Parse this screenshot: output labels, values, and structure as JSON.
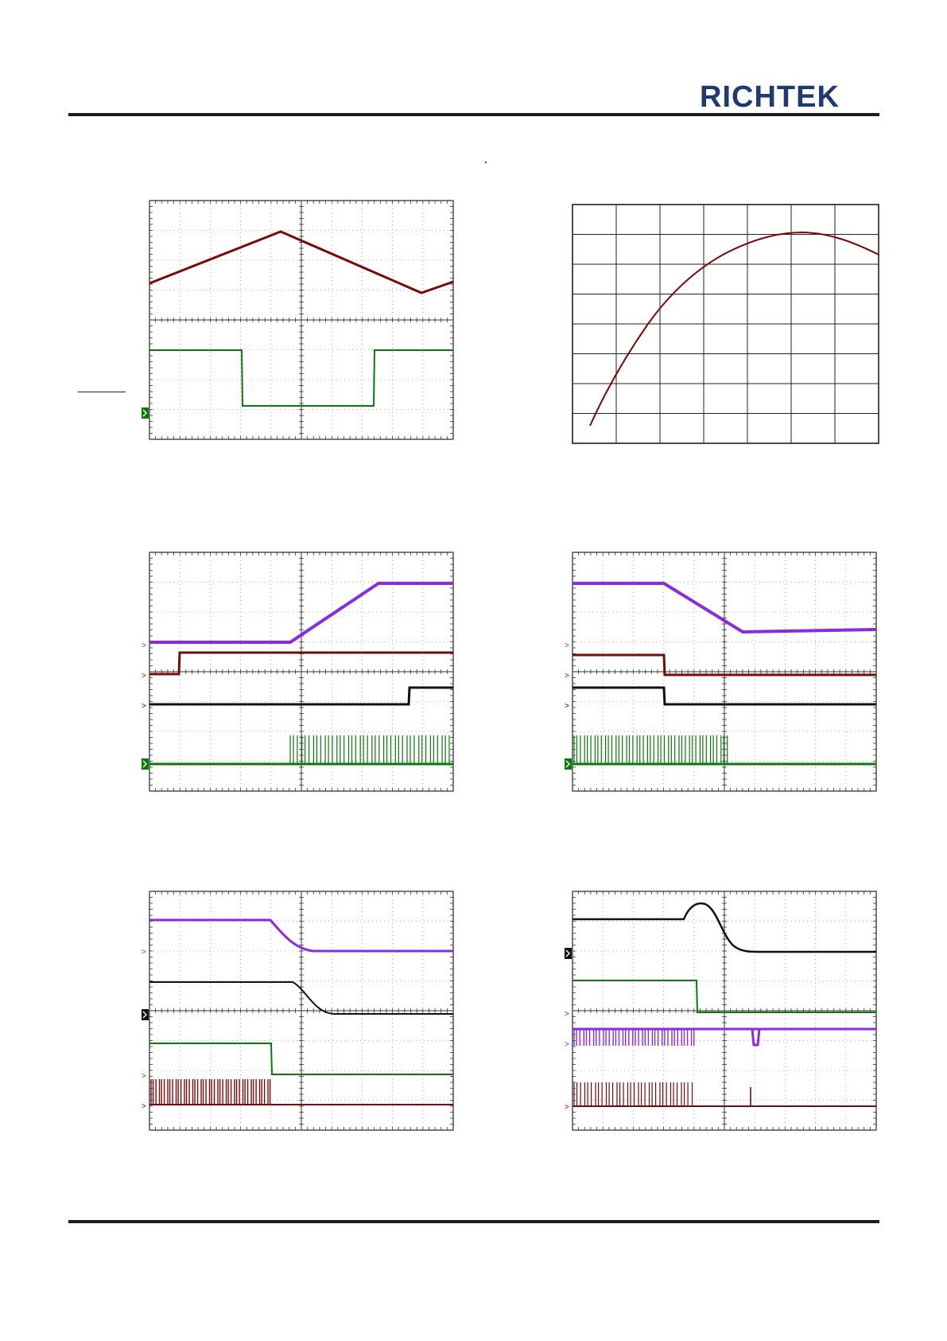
{
  "header": {
    "logo_text": "RICHTEK",
    "logo_color": "#1f3a6e"
  },
  "colors": {
    "dark_red": "#7a0a0a",
    "green": "#0a7a0a",
    "purple": "#8a2be2",
    "black": "#111111",
    "grid": "#bdbdbd"
  },
  "chart_data": [
    {
      "type": "line",
      "panel": "scope-top-left",
      "series": [
        {
          "color": "dark_red",
          "channel": 1,
          "values": [
            0.35,
            0.62,
            0.78,
            0.9,
            0.78,
            0.62,
            0.46,
            0.3,
            0.17,
            0.27
          ]
        },
        {
          "color": "green",
          "channel": 2,
          "values": [
            1,
            1,
            1,
            0,
            0,
            0,
            0,
            1,
            1,
            1
          ]
        }
      ]
    },
    {
      "type": "line",
      "panel": "curve-top-right",
      "grid": true,
      "series": [
        {
          "color": "dark_red",
          "values": [
            0.08,
            0.3,
            0.49,
            0.63,
            0.74,
            0.82,
            0.87,
            0.89,
            0.88,
            0.85,
            0.79
          ]
        }
      ]
    },
    {
      "type": "line",
      "panel": "scope-middle-left",
      "series": [
        {
          "color": "purple",
          "channel": 4,
          "values": [
            0,
            0,
            1
          ]
        },
        {
          "color": "dark_red",
          "channel": 1,
          "values": [
            0,
            1,
            1
          ]
        },
        {
          "color": "black",
          "channel": 3,
          "values": [
            0,
            0,
            1
          ]
        },
        {
          "color": "green",
          "channel": 2,
          "values": [
            0,
            "switching",
            "switching"
          ]
        }
      ]
    },
    {
      "type": "line",
      "panel": "scope-middle-right",
      "series": [
        {
          "color": "purple",
          "channel": 4,
          "values": [
            1,
            1,
            0
          ]
        },
        {
          "color": "dark_red",
          "channel": 1,
          "values": [
            1,
            0,
            0
          ]
        },
        {
          "color": "black",
          "channel": 3,
          "values": [
            1,
            0,
            0
          ]
        },
        {
          "color": "green",
          "channel": 2,
          "values": [
            "switching",
            "switching",
            0
          ]
        }
      ]
    },
    {
      "type": "line",
      "panel": "scope-bottom-left",
      "series": [
        {
          "color": "purple",
          "channel": 4,
          "values": [
            1,
            1,
            0
          ]
        },
        {
          "color": "black",
          "channel": 3,
          "values": [
            1,
            1,
            0
          ]
        },
        {
          "color": "green",
          "channel": 2,
          "values": [
            1,
            0,
            0
          ]
        },
        {
          "color": "dark_red",
          "channel": 1,
          "values": [
            "switching",
            0,
            0
          ]
        }
      ]
    },
    {
      "type": "line",
      "panel": "scope-bottom-right",
      "series": [
        {
          "color": "black",
          "channel": 3,
          "values": [
            0.5,
            1,
            0
          ]
        },
        {
          "color": "green",
          "channel": 2,
          "values": [
            1,
            0,
            0
          ]
        },
        {
          "color": "purple",
          "channel": 4,
          "values": [
            "switching",
            1,
            1
          ]
        },
        {
          "color": "dark_red",
          "channel": 1,
          "values": [
            "switching",
            0,
            0
          ]
        }
      ]
    }
  ]
}
